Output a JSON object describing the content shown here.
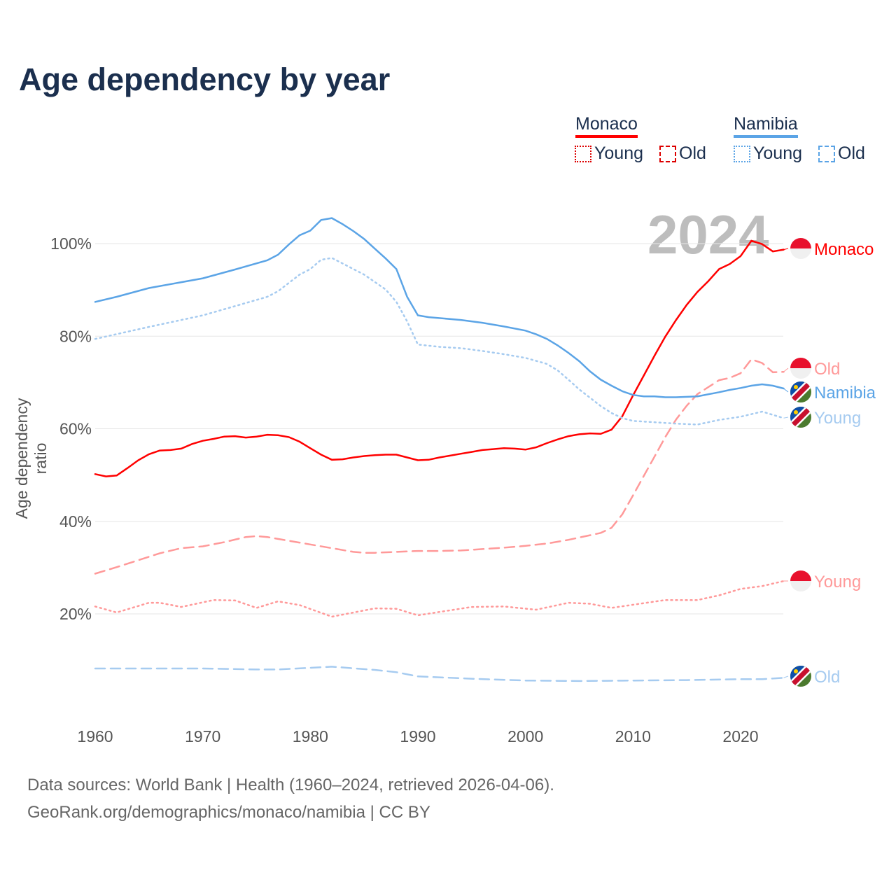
{
  "title": "Age dependency by year",
  "year_watermark": "2024",
  "legend": {
    "countries": [
      {
        "name": "Monaco",
        "color": "#ff0000",
        "items": [
          "Young",
          "Old"
        ]
      },
      {
        "name": "Namibia",
        "color": "#5ba4e6",
        "items": [
          "Young",
          "Old"
        ]
      }
    ]
  },
  "source_line1": "Data sources: World Bank | Health (1960–2024, retrieved 2026-04-06).",
  "source_line2": "GeoRank.org/demographics/monaco/namibia | CC BY",
  "chart_data": {
    "type": "line",
    "title": "Age dependency by year",
    "xlabel": "",
    "ylabel": "Age dependency ratio",
    "xlim": [
      1960,
      2024
    ],
    "ylim": [
      0,
      110
    ],
    "x_ticks": [
      "1960",
      "1970",
      "1980",
      "1990",
      "2000",
      "2010",
      "2020"
    ],
    "y_ticks": [
      "20%",
      "40%",
      "60%",
      "80%",
      "100%"
    ],
    "grid": true,
    "series": [
      {
        "name": "Monaco",
        "label": "Monaco",
        "country": "monaco",
        "style": "solid",
        "color": "#ff0000",
        "x": [
          1960,
          1961,
          1962,
          1963,
          1964,
          1965,
          1966,
          1967,
          1968,
          1969,
          1970,
          1971,
          1972,
          1973,
          1974,
          1975,
          1976,
          1977,
          1978,
          1979,
          1980,
          1981,
          1982,
          1983,
          1984,
          1985,
          1986,
          1987,
          1988,
          1989,
          1990,
          1991,
          1992,
          1993,
          1994,
          1995,
          1996,
          1997,
          1998,
          1999,
          2000,
          2001,
          2002,
          2003,
          2004,
          2005,
          2006,
          2007,
          2008,
          2009,
          2010,
          2011,
          2012,
          2013,
          2014,
          2015,
          2016,
          2017,
          2018,
          2019,
          2020,
          2021,
          2022,
          2023,
          2024
        ],
        "y": [
          50.2,
          49.7,
          49.9,
          51.5,
          53.2,
          54.5,
          55.3,
          55.4,
          55.7,
          56.7,
          57.4,
          57.8,
          58.3,
          58.4,
          58.1,
          58.3,
          58.7,
          58.6,
          58.2,
          57.2,
          55.8,
          54.4,
          53.3,
          53.4,
          53.8,
          54.1,
          54.3,
          54.4,
          54.4,
          53.8,
          53.2,
          53.3,
          53.8,
          54.2,
          54.6,
          55.0,
          55.4,
          55.6,
          55.8,
          55.7,
          55.5,
          56.0,
          56.9,
          57.7,
          58.4,
          58.8,
          59.0,
          58.9,
          59.8,
          62.7,
          67.2,
          71.5,
          75.8,
          79.9,
          83.5,
          86.8,
          89.6,
          91.9,
          94.5,
          95.6,
          97.3,
          100.6,
          99.9,
          98.3,
          98.7
        ]
      },
      {
        "name": "Monaco Old",
        "label": "Old",
        "country": "monaco",
        "style": "dashed",
        "color": "#ff9999",
        "x": [
          1960,
          1962,
          1964,
          1966,
          1968,
          1970,
          1972,
          1974,
          1975,
          1976,
          1978,
          1980,
          1982,
          1984,
          1985,
          1986,
          1988,
          1990,
          1992,
          1994,
          1996,
          1998,
          2000,
          2002,
          2004,
          2006,
          2007,
          2008,
          2009,
          2010,
          2011,
          2012,
          2013,
          2014,
          2015,
          2016,
          2017,
          2018,
          2019,
          2020,
          2021,
          2022,
          2023,
          2024
        ],
        "y": [
          28.7,
          30.1,
          31.6,
          33.1,
          34.2,
          34.6,
          35.5,
          36.6,
          36.8,
          36.6,
          35.8,
          35.0,
          34.2,
          33.4,
          33.2,
          33.2,
          33.4,
          33.6,
          33.6,
          33.7,
          34.0,
          34.3,
          34.7,
          35.2,
          36.0,
          37.0,
          37.5,
          38.6,
          41.5,
          45.6,
          49.8,
          54.0,
          58.2,
          62.0,
          65.0,
          67.5,
          69.0,
          70.5,
          71.0,
          72.0,
          75.0,
          74.2,
          72.2,
          72.3
        ]
      },
      {
        "name": "Monaco Young",
        "label": "Young",
        "country": "monaco",
        "style": "dotted",
        "color": "#ff9999",
        "x": [
          1960,
          1962,
          1965,
          1966,
          1968,
          1971,
          1973,
          1975,
          1977,
          1979,
          1982,
          1986,
          1988,
          1990,
          1995,
          1998,
          2001,
          2004,
          2006,
          2008,
          2013,
          2016,
          2018,
          2020,
          2022,
          2024
        ],
        "y": [
          21.6,
          20.3,
          22.4,
          22.4,
          21.5,
          23.0,
          22.9,
          21.3,
          22.7,
          21.9,
          19.4,
          21.2,
          21.1,
          19.7,
          21.5,
          21.6,
          20.9,
          22.4,
          22.2,
          21.3,
          23.0,
          23.0,
          24.0,
          25.4,
          26.0,
          27.1
        ]
      },
      {
        "name": "Namibia",
        "label": "Namibia",
        "country": "namibia",
        "style": "solid",
        "color": "#5ba4e6",
        "x": [
          1960,
          1962,
          1965,
          1970,
          1973,
          1976,
          1977,
          1978,
          1979,
          1980,
          1981,
          1982,
          1983,
          1984,
          1985,
          1986,
          1987,
          1988,
          1989,
          1990,
          1991,
          1994,
          1996,
          1998,
          2000,
          2001,
          2002,
          2003,
          2004,
          2005,
          2006,
          2007,
          2008,
          2009,
          2010,
          2011,
          2012,
          2013,
          2014,
          2016,
          2018,
          2019,
          2020,
          2021,
          2022,
          2023,
          2024
        ],
        "y": [
          87.4,
          88.5,
          90.4,
          92.5,
          94.4,
          96.4,
          97.6,
          99.8,
          101.8,
          102.8,
          105.1,
          105.5,
          104.2,
          102.7,
          101.0,
          98.9,
          96.8,
          94.5,
          88.5,
          84.5,
          84.1,
          83.5,
          82.9,
          82.1,
          81.2,
          80.4,
          79.4,
          78.0,
          76.4,
          74.6,
          72.4,
          70.6,
          69.3,
          68.1,
          67.3,
          67.0,
          67.0,
          66.8,
          66.8,
          67.0,
          67.9,
          68.4,
          68.8,
          69.3,
          69.6,
          69.3,
          68.7
        ]
      },
      {
        "name": "Namibia Young",
        "label": "Young",
        "country": "namibia",
        "style": "dotted",
        "color": "#a6cbf0",
        "x": [
          1960,
          1965,
          1970,
          1973,
          1976,
          1977,
          1979,
          1980,
          1981,
          1982,
          1983,
          1985,
          1987,
          1988,
          1989,
          1990,
          1992,
          1994,
          1996,
          1998,
          2000,
          2002,
          2003,
          2004,
          2005,
          2006,
          2007,
          2008,
          2009,
          2010,
          2012,
          2014,
          2016,
          2018,
          2020,
          2022,
          2024
        ],
        "y": [
          79.4,
          82.0,
          84.5,
          86.5,
          88.5,
          89.7,
          93.3,
          94.5,
          96.5,
          96.9,
          95.7,
          93.3,
          90.1,
          87.4,
          83.2,
          78.2,
          77.7,
          77.4,
          76.8,
          76.1,
          75.3,
          74.0,
          72.6,
          70.6,
          68.5,
          66.7,
          64.9,
          63.4,
          62.3,
          61.7,
          61.4,
          61.1,
          60.9,
          61.9,
          62.6,
          63.7,
          62.3
        ]
      },
      {
        "name": "Namibia Old",
        "label": "Old",
        "country": "namibia",
        "style": "dashed",
        "color": "#a6cbf0",
        "x": [
          1960,
          1970,
          1975,
          1977,
          1982,
          1986,
          1988,
          1990,
          1995,
          2000,
          2005,
          2010,
          2015,
          2020,
          2022,
          2024
        ],
        "y": [
          8.2,
          8.2,
          8.0,
          8.0,
          8.6,
          7.9,
          7.4,
          6.5,
          6.0,
          5.6,
          5.5,
          5.6,
          5.7,
          5.9,
          5.9,
          6.2
        ]
      }
    ]
  }
}
